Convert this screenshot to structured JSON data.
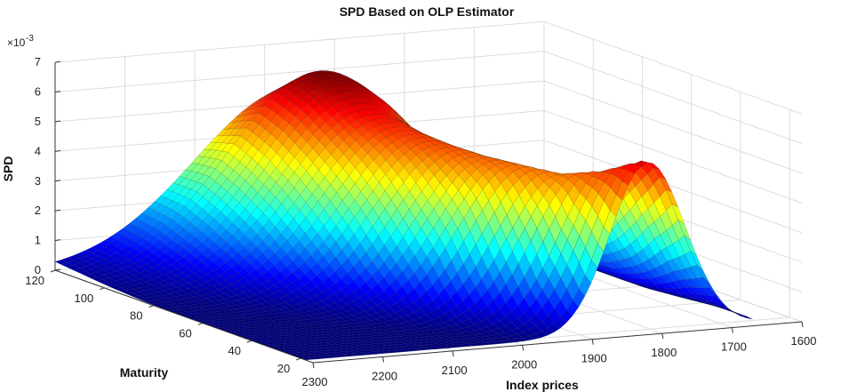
{
  "chart_data": {
    "type": "surface3d",
    "title": "SPD Based on OLP Estimator",
    "xlabel": "Maturity",
    "ylabel": "Index prices",
    "zlabel": "SPD",
    "z_exponent_label": "×10",
    "z_exponent_power": "-3",
    "x_ticks": [
      20,
      40,
      60,
      80,
      100,
      120
    ],
    "y_ticks": [
      1600,
      1700,
      1800,
      1900,
      2000,
      2100,
      2200,
      2300
    ],
    "z_ticks": [
      0,
      1,
      2,
      3,
      4,
      5,
      6,
      7
    ],
    "xlim": [
      15,
      120
    ],
    "ylim": [
      1600,
      2300
    ],
    "zlim": [
      0,
      7
    ],
    "grid": true,
    "colormap": "jet",
    "surface_peak_profile": {
      "maturity": [
        20,
        30,
        40,
        50,
        60,
        70,
        80,
        90,
        100,
        110,
        120
      ],
      "peak_spd": [
        5.7,
        5.1,
        4.75,
        4.85,
        4.9,
        5.05,
        5.25,
        5.55,
        6.1,
        6.35,
        5.5
      ],
      "peak_index_price": [
        1810,
        1830,
        1860,
        1890,
        1910,
        1930,
        1945,
        1955,
        1955,
        1955,
        1960
      ]
    }
  }
}
